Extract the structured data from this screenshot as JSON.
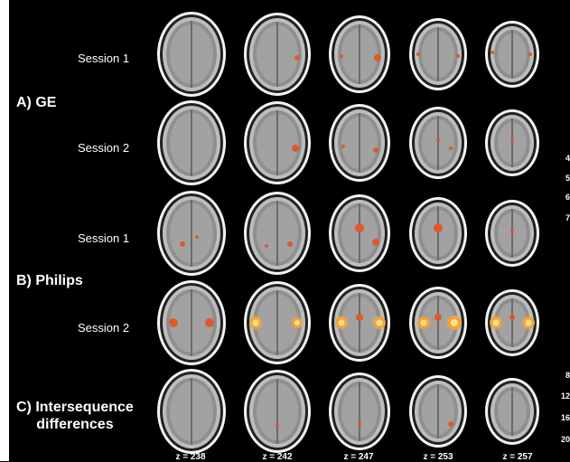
{
  "groups": [
    {
      "label": "A) GE",
      "sessions": [
        "Session 1",
        "Session 2"
      ]
    },
    {
      "label": "B) Philips",
      "sessions": [
        "Session 1",
        "Session 2"
      ]
    },
    {
      "label": "C) Intersequence\ndifferences",
      "sessions": []
    }
  ],
  "z_labels": [
    "z = 238",
    "z = 242",
    "z = 247",
    "z = 253",
    "z = 257"
  ],
  "edge_numbers_top": [
    "4",
    "5",
    "6",
    "7"
  ],
  "edge_numbers_bottom": [
    "8",
    "12",
    "16",
    "20"
  ],
  "colors": {
    "background": "#000000",
    "activation": "#e0552a",
    "activation_hot": "#f2a33a"
  }
}
